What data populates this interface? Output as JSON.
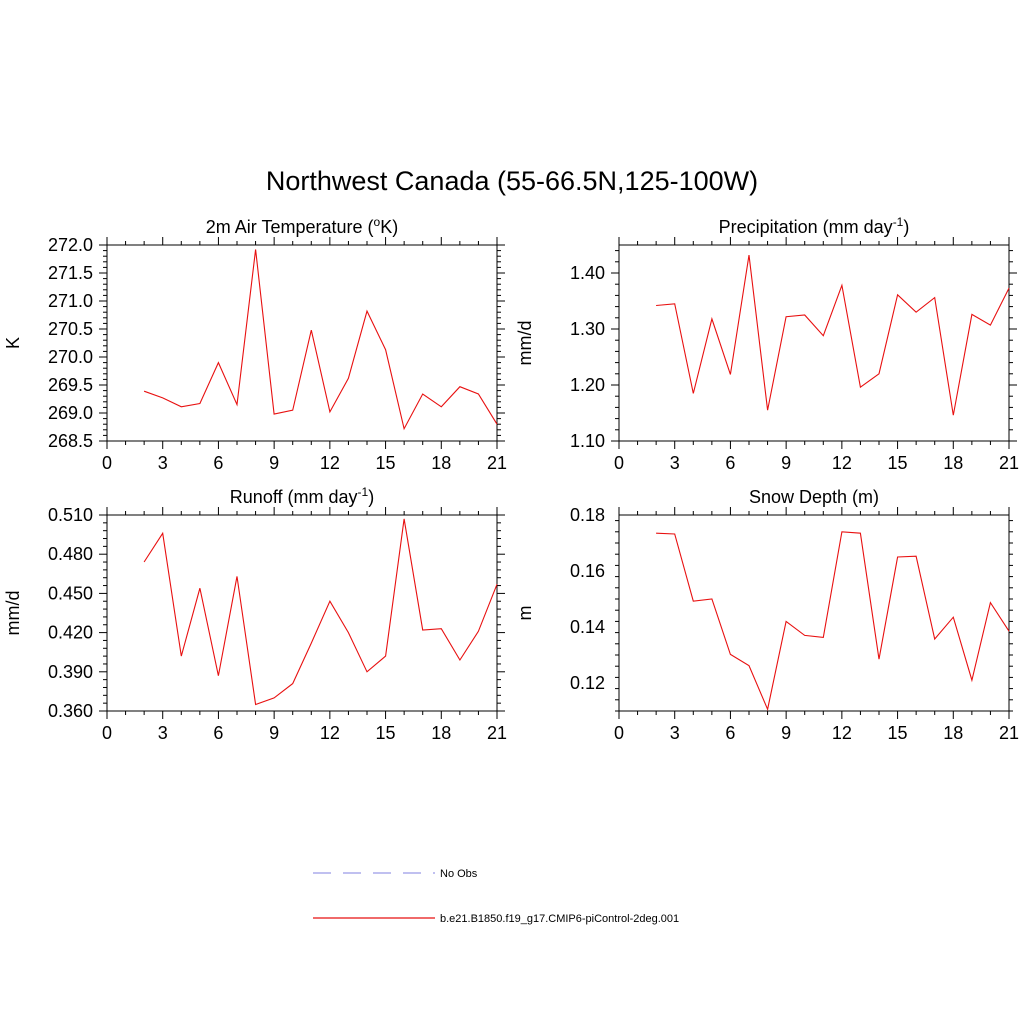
{
  "figure": {
    "title": "Northwest Canada (55-66.5N,125-100W)"
  },
  "legend": [
    {
      "label": "No Obs",
      "color": "#9a9ae8",
      "style": "dashed"
    },
    {
      "label": "b.e21.B1850.f19_g17.CMIP6-piControl-2deg.001",
      "color": "#e81010",
      "style": "solid"
    }
  ],
  "chart_data": [
    {
      "type": "line",
      "title": "2m Air Temperature (",
      "title_sup": "o",
      "title_end": "K)",
      "xlabel": "",
      "ylabel": "K",
      "xlim": [
        0,
        21
      ],
      "ylim": [
        268.5,
        272.0
      ],
      "xticks": [
        0,
        3,
        6,
        9,
        12,
        15,
        18,
        21
      ],
      "yticks": [
        "268.5",
        "269.0",
        "269.5",
        "270.0",
        "270.5",
        "271.0",
        "271.5",
        "272.0"
      ],
      "x": [
        2,
        3,
        4,
        5,
        6,
        7,
        8,
        9,
        10,
        11,
        12,
        13,
        14,
        15,
        16,
        17,
        18,
        19,
        20,
        21
      ],
      "series": [
        {
          "name": "b.e21.B1850.f19_g17.CMIP6-piControl-2deg.001",
          "color": "#e81010",
          "values": [
            269.39,
            269.27,
            269.11,
            269.17,
            269.9,
            269.15,
            271.92,
            268.98,
            269.05,
            270.48,
            269.02,
            269.62,
            270.82,
            270.13,
            268.72,
            269.34,
            269.11,
            269.47,
            269.34,
            268.8
          ]
        }
      ]
    },
    {
      "type": "line",
      "title": "Precipitation (mm day",
      "title_sup": "-1",
      "title_end": ")",
      "xlabel": "",
      "ylabel": "mm/d",
      "xlim": [
        0,
        21
      ],
      "ylim": [
        1.1,
        1.45
      ],
      "xticks": [
        0,
        3,
        6,
        9,
        12,
        15,
        18,
        21
      ],
      "yticks": [
        "1.10",
        "1.20",
        "1.30",
        "1.40"
      ],
      "x": [
        2,
        3,
        4,
        5,
        6,
        7,
        8,
        9,
        10,
        11,
        12,
        13,
        14,
        15,
        16,
        17,
        18,
        19,
        20,
        21
      ],
      "series": [
        {
          "name": "b.e21.B1850.f19_g17.CMIP6-piControl-2deg.001",
          "color": "#e81010",
          "values": [
            1.342,
            1.345,
            1.185,
            1.318,
            1.219,
            1.432,
            1.155,
            1.322,
            1.325,
            1.288,
            1.378,
            1.196,
            1.22,
            1.361,
            1.33,
            1.356,
            1.146,
            1.326,
            1.307,
            1.373
          ]
        }
      ]
    },
    {
      "type": "line",
      "title": "Runoff (mm day",
      "title_sup": "-1",
      "title_end": ")",
      "xlabel": "",
      "ylabel": "mm/d",
      "xlim": [
        0,
        21
      ],
      "ylim": [
        0.36,
        0.51
      ],
      "xticks": [
        0,
        3,
        6,
        9,
        12,
        15,
        18,
        21
      ],
      "yticks": [
        "0.360",
        "0.390",
        "0.420",
        "0.450",
        "0.480",
        "0.510"
      ],
      "x": [
        2,
        3,
        4,
        5,
        6,
        7,
        8,
        9,
        10,
        11,
        12,
        13,
        14,
        15,
        16,
        17,
        18,
        19,
        20,
        21
      ],
      "series": [
        {
          "name": "b.e21.B1850.f19_g17.CMIP6-piControl-2deg.001",
          "color": "#e81010",
          "values": [
            0.474,
            0.496,
            0.402,
            0.454,
            0.387,
            0.463,
            0.365,
            0.37,
            0.381,
            0.412,
            0.444,
            0.42,
            0.39,
            0.402,
            0.507,
            0.422,
            0.423,
            0.399,
            0.421,
            0.457
          ]
        }
      ]
    },
    {
      "type": "line",
      "title": "Snow Depth (m)",
      "title_sup": "",
      "title_end": "",
      "xlabel": "",
      "ylabel": "m",
      "xlim": [
        0,
        21
      ],
      "ylim": [
        0.11,
        0.18
      ],
      "xticks": [
        0,
        3,
        6,
        9,
        12,
        15,
        18,
        21
      ],
      "yticks": [
        "0.12",
        "0.14",
        "0.16",
        "0.18"
      ],
      "x": [
        2,
        3,
        4,
        5,
        6,
        7,
        8,
        9,
        10,
        11,
        12,
        13,
        14,
        15,
        16,
        17,
        18,
        19,
        20,
        21
      ],
      "series": [
        {
          "name": "b.e21.B1850.f19_g17.CMIP6-piControl-2deg.001",
          "color": "#e81010",
          "values": [
            0.1735,
            0.1732,
            0.1492,
            0.15,
            0.1302,
            0.1262,
            0.1106,
            0.142,
            0.137,
            0.1363,
            0.174,
            0.1735,
            0.1285,
            0.165,
            0.1653,
            0.1357,
            0.1435,
            0.121,
            0.1487,
            0.1385
          ]
        }
      ]
    }
  ]
}
